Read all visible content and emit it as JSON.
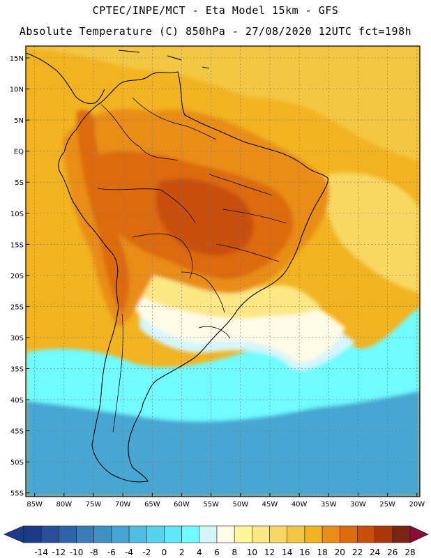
{
  "header": {
    "line1": "CPTEC/INPE/MCT -  Eta Model 15km - GFS",
    "line2": "Absolute Temperature (C) 850hPa - 27/08/2020 12UTC fct=198h"
  },
  "axes": {
    "lat_labels": [
      "15N",
      "10N",
      "5N",
      "EQ",
      "5S",
      "10S",
      "15S",
      "20S",
      "25S",
      "30S",
      "35S",
      "40S",
      "45S",
      "50S",
      "55S"
    ],
    "lon_labels": [
      "85W",
      "80W",
      "75W",
      "70W",
      "65W",
      "60W",
      "55W",
      "50W",
      "45W",
      "40W",
      "35W",
      "30W",
      "25W",
      "20W"
    ]
  },
  "colorbar": {
    "labels": [
      "-14",
      "-12",
      "-10",
      "-8",
      "-6",
      "-4",
      "-2",
      "0",
      "2",
      "4",
      "6",
      "8",
      "10",
      "12",
      "14",
      "16",
      "18",
      "20",
      "22",
      "24",
      "26",
      "28"
    ],
    "colors": [
      "#1d3a8a",
      "#2a4f9a",
      "#2f65a8",
      "#3a7bb8",
      "#3f90c4",
      "#46a6d2",
      "#4fbde0",
      "#55d2ec",
      "#5ee7f7",
      "#6ffbff",
      "#d4f6fb",
      "#fffbe6",
      "#fff59a",
      "#fbe784",
      "#f8d862",
      "#f4c742",
      "#f2b321",
      "#e98d17",
      "#dd6b0e",
      "#c94f0c",
      "#a8380c",
      "#7a2412"
    ]
  },
  "field_colors": {
    "ocean_tropical": "#f2b321",
    "ocean_north_band": "#f4c742",
    "ocean_warm_patch": "#f8d862",
    "land_warm": "#e98d17",
    "land_hot": "#dd6b0e",
    "land_hottest": "#c94f0c",
    "cold_10": "#46a6d2",
    "cold_12": "#3f90c4",
    "cold_14": "#3a7bb8",
    "cool_0": "#55d2ec",
    "cool_4": "#6ffbff",
    "pale_6": "#d4f6fb",
    "cream_8": "#fffbe6",
    "yellow_10": "#fff59a",
    "yellow_12": "#fbe784"
  }
}
